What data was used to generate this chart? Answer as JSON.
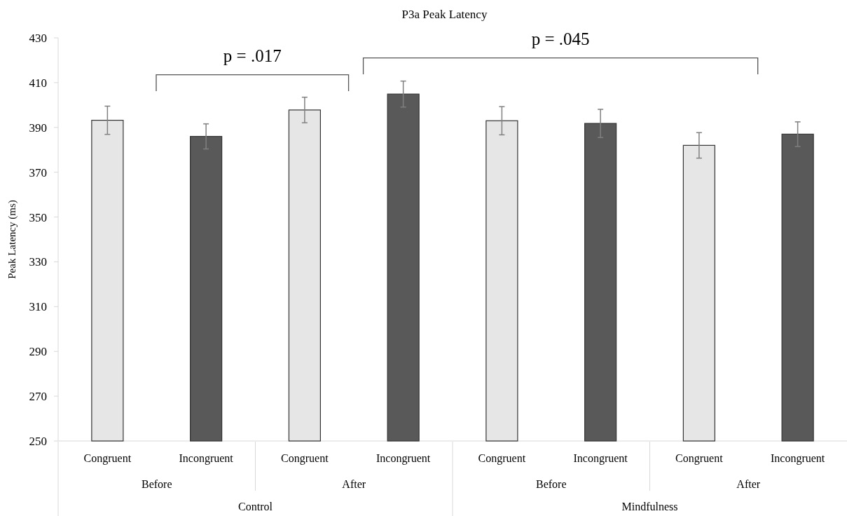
{
  "chart_data": {
    "type": "bar",
    "title": "P3a Peak Latency",
    "ylabel": "Peak Latency (ms)",
    "categories": [
      "Congruent",
      "Incongruent",
      "Congruent",
      "Incongruent",
      "Congruent",
      "Incongruent",
      "Congruent",
      "Incongruent"
    ],
    "values": [
      393.2,
      386,
      397.8,
      404.9,
      393,
      391.8,
      382,
      387
    ],
    "colors": [
      "#e6e6e6",
      "#595959",
      "#e6e6e6",
      "#595959",
      "#e6e6e6",
      "#595959",
      "#e6e6e6",
      "#595959"
    ],
    "errors": [
      6.3,
      5.6,
      5.7,
      5.8,
      6.3,
      6.3,
      5.7,
      5.5
    ],
    "ylim": [
      250,
      430
    ],
    "yticks": [
      250,
      270,
      290,
      310,
      330,
      350,
      370,
      390,
      410,
      430
    ],
    "grid": false,
    "annotations": [
      "p = .017",
      "p = .045",
      "Before",
      "After",
      "Before",
      "After",
      "Control",
      "Mindfulness"
    ]
  }
}
